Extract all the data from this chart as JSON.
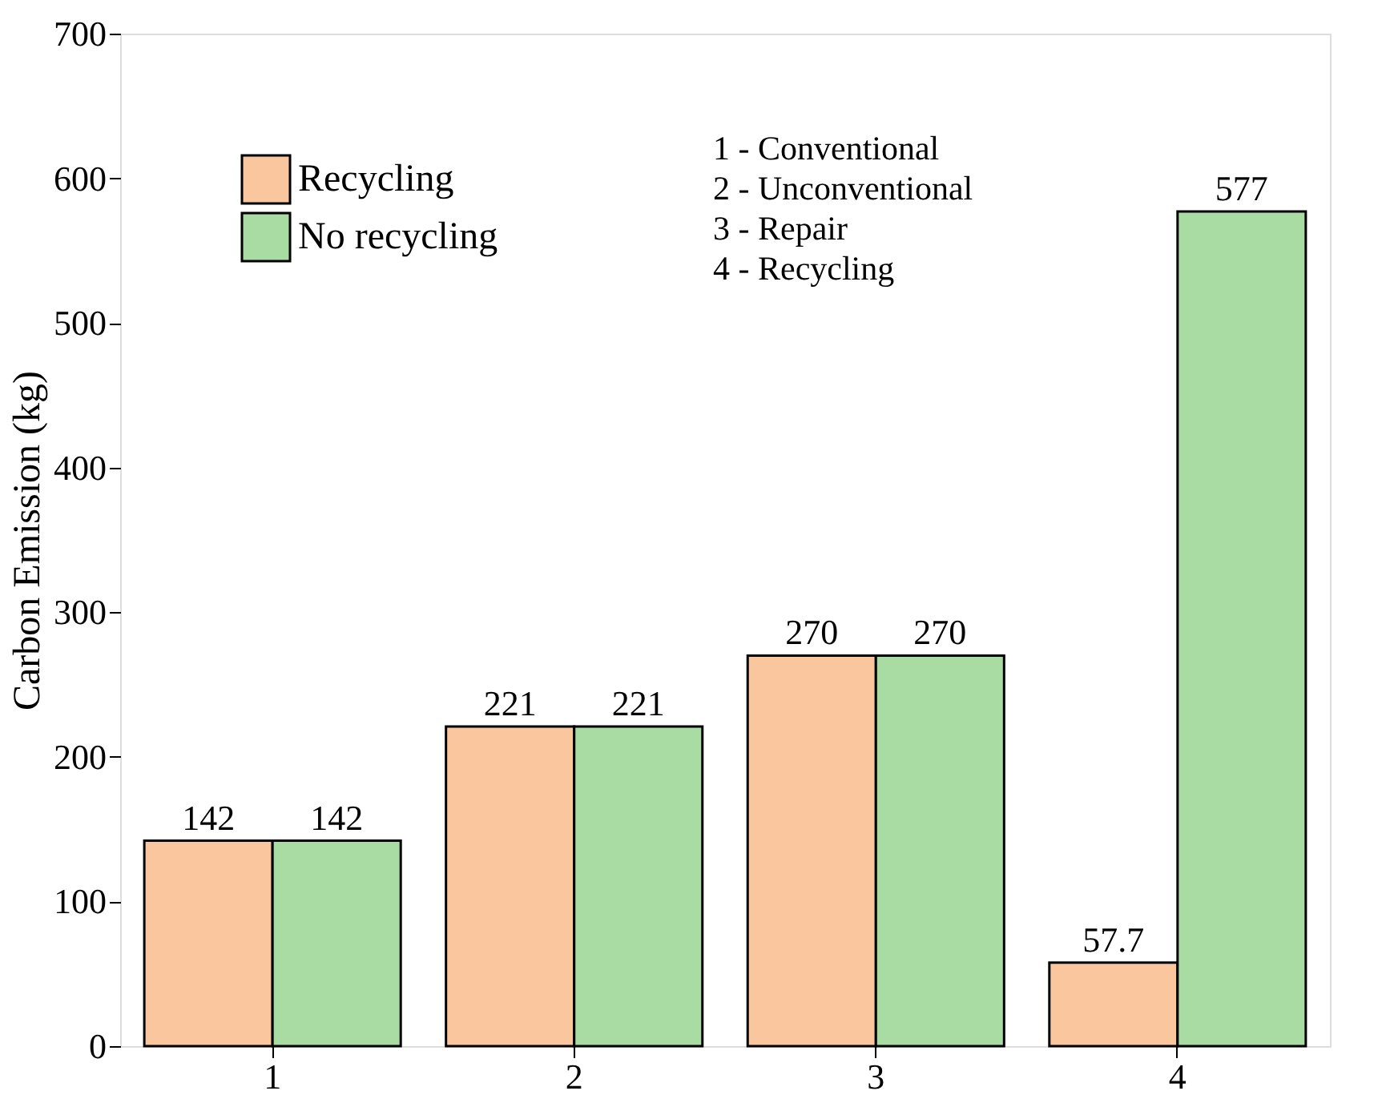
{
  "chart_data": {
    "type": "bar",
    "ylabel": "Carbon Emission (kg)",
    "categories": [
      "1",
      "2",
      "3",
      "4"
    ],
    "series": [
      {
        "name": "Recycling",
        "color": "#f9c69d",
        "values": [
          142,
          221,
          270,
          57.7
        ]
      },
      {
        "name": "No recycling",
        "color": "#a9dca2",
        "values": [
          142,
          221,
          270,
          577
        ]
      }
    ],
    "ylim": [
      0,
      700
    ],
    "yticks": [
      0,
      100,
      200,
      300,
      400,
      500,
      600,
      700
    ],
    "data_labels": true,
    "legend": "top left",
    "grid": false,
    "annotations": [
      "1 - Conventional",
      "2 - Unconventional",
      "3 - Repair",
      "4 - Recycling"
    ]
  }
}
